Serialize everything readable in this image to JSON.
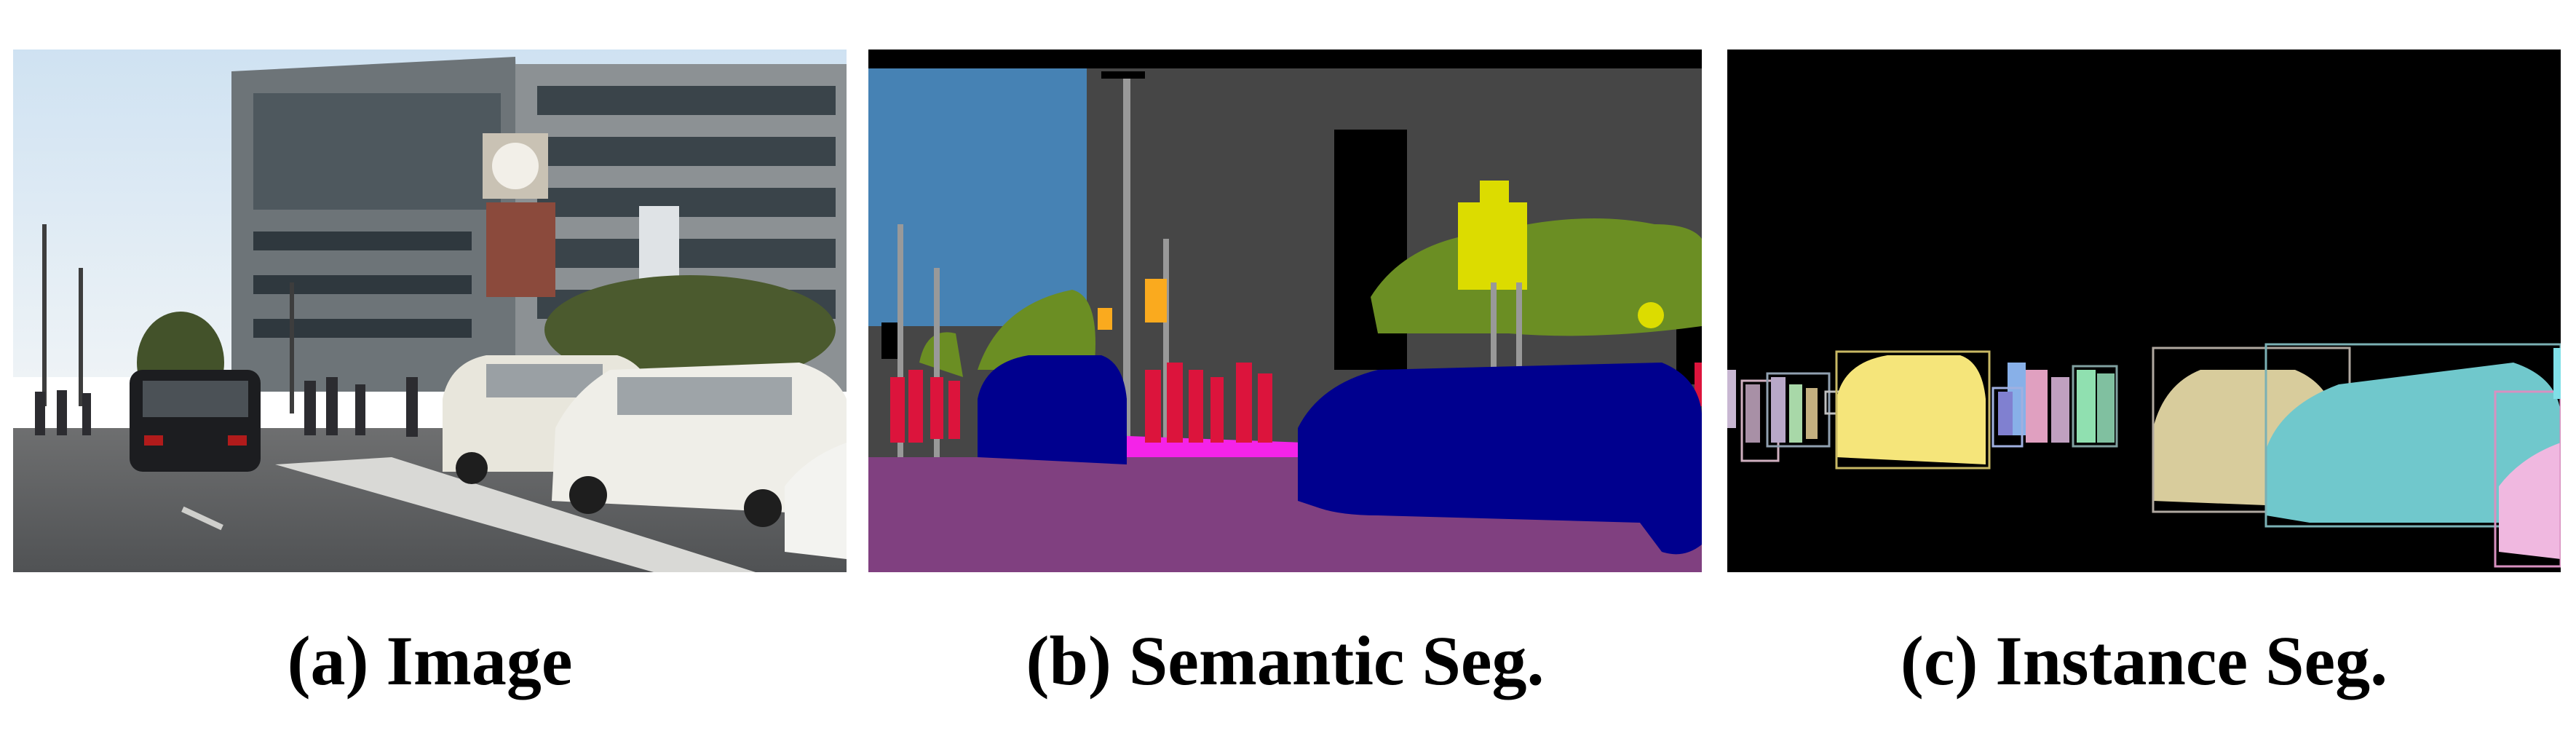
{
  "captions": {
    "a": "(a) Image",
    "b": "(b) Semantic Seg.",
    "c": "(c) Instance Seg."
  },
  "colors": {
    "sky": "#4682b4",
    "building": "#464646",
    "road": "#804080",
    "sidewalk": "#f423e8",
    "vegetation": "#6b8e23",
    "car": "#00008e",
    "person": "#dc143c",
    "traffic_sign": "#dcdc00",
    "traffic_light": "#faaa1e",
    "pole": "#999999"
  }
}
